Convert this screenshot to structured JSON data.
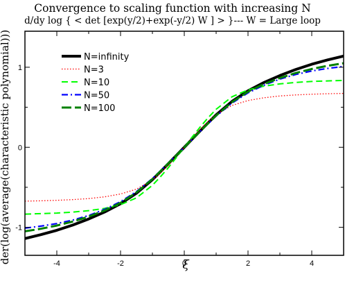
{
  "chart_data": {
    "type": "line",
    "title": "Convergence to scaling function with increasing N",
    "subtitle": "d/dy log { < det [exp(y/2)+exp(-y/2) W ] > }--- W = Large loop",
    "xlabel": "ξ",
    "ylabel": "der(log(average(characteristic polynomial)))",
    "xlim": [
      -5,
      5
    ],
    "ylim": [
      -1.35,
      1.45
    ],
    "x_ticks": [
      -4,
      -2,
      0,
      2,
      4
    ],
    "x_tick_labels": [
      "-4",
      "-2",
      "0",
      "2",
      "4"
    ],
    "y_ticks": [
      -1,
      0,
      1
    ],
    "y_tick_labels": [
      "-1",
      "0",
      "1"
    ],
    "grid": false,
    "legend_position": "top-left",
    "x": [
      -5,
      -4.5,
      -4,
      -3.5,
      -3,
      -2.5,
      -2,
      -1.5,
      -1,
      -0.75,
      -0.5,
      -0.25,
      0,
      0.25,
      0.5,
      0.75,
      1,
      1.5,
      2,
      2.5,
      3,
      3.5,
      4,
      4.5,
      5
    ],
    "series": [
      {
        "name": "N=infinity",
        "color": "#000000",
        "dash": "solid",
        "width": 4,
        "values": [
          -1.14,
          -1.092,
          -1.037,
          -0.972,
          -0.896,
          -0.809,
          -0.705,
          -0.574,
          -0.405,
          -0.306,
          -0.205,
          -0.103,
          0.0,
          0.103,
          0.205,
          0.306,
          0.405,
          0.574,
          0.705,
          0.809,
          0.896,
          0.972,
          1.037,
          1.092,
          1.14
        ]
      },
      {
        "name": "N=3",
        "color": "#ff0000",
        "dash": "dotted",
        "width": 1.3,
        "values": [
          -0.673,
          -0.669,
          -0.663,
          -0.654,
          -0.641,
          -0.619,
          -0.584,
          -0.523,
          -0.408,
          -0.324,
          -0.227,
          -0.117,
          0.0,
          0.117,
          0.227,
          0.324,
          0.408,
          0.523,
          0.584,
          0.619,
          0.641,
          0.654,
          0.663,
          0.669,
          0.673
        ]
      },
      {
        "name": "N=10",
        "color": "#00ff00",
        "dash": "dashed",
        "width": 2,
        "values": [
          -0.835,
          -0.829,
          -0.822,
          -0.81,
          -0.792,
          -0.764,
          -0.717,
          -0.632,
          -0.475,
          -0.37,
          -0.254,
          -0.129,
          0.0,
          0.129,
          0.254,
          0.37,
          0.475,
          0.632,
          0.717,
          0.764,
          0.792,
          0.81,
          0.822,
          0.829,
          0.835
        ]
      },
      {
        "name": "N=50",
        "color": "#0000ff",
        "dash": "dashdot",
        "width": 2.2,
        "values": [
          -1.01,
          -0.985,
          -0.953,
          -0.91,
          -0.852,
          -0.776,
          -0.68,
          -0.553,
          -0.39,
          -0.295,
          -0.197,
          -0.099,
          0.0,
          0.099,
          0.197,
          0.295,
          0.39,
          0.553,
          0.68,
          0.776,
          0.852,
          0.91,
          0.953,
          0.985,
          1.01
        ]
      },
      {
        "name": "N=100",
        "color": "#008000",
        "dash": "longdash",
        "width": 3,
        "values": [
          -1.05,
          -1.018,
          -0.978,
          -0.928,
          -0.866,
          -0.79,
          -0.695,
          -0.565,
          -0.397,
          -0.3,
          -0.201,
          -0.101,
          0.0,
          0.101,
          0.201,
          0.3,
          0.397,
          0.565,
          0.695,
          0.79,
          0.866,
          0.928,
          0.978,
          1.018,
          1.05
        ]
      }
    ]
  }
}
